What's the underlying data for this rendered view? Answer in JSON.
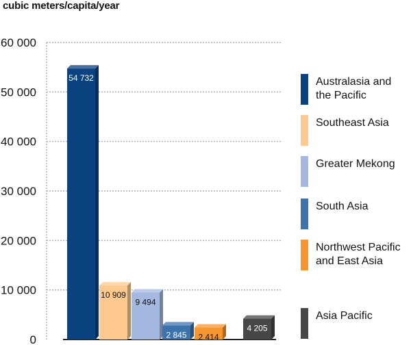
{
  "unit_label": "cubic meters/capita/year",
  "chart_data": {
    "type": "bar",
    "title": "",
    "ylabel": "cubic meters/capita/year",
    "ylim": [
      0,
      60000
    ],
    "y_ticks": [
      "0",
      "10 000",
      "20 000",
      "30 000",
      "40 000",
      "50 000",
      "60 000"
    ],
    "y_tick_values": [
      0,
      10000,
      20000,
      30000,
      40000,
      50000,
      60000
    ],
    "grid": true,
    "legend_position": "right",
    "categories": [
      "Australasia and the Pacific",
      "Southeast Asia",
      "Greater Mekong",
      "South Asia",
      "Northwest Pacific and East Asia",
      "Asia Pacific"
    ],
    "values": [
      54732,
      10909,
      9494,
      2845,
      2414,
      4205
    ],
    "value_labels": [
      "54 732",
      "10 909",
      "9 494",
      "2 845",
      "2 414",
      "4 205"
    ],
    "colors": [
      "#0b4280",
      "#fdc98e",
      "#a4b8e0",
      "#3d73ad",
      "#f7962f",
      "#474747"
    ],
    "label_colors": [
      "#ffffff",
      "#111111",
      "#111111",
      "#ffffff",
      "#111111",
      "#ffffff"
    ],
    "legend": [
      [
        "Australasia and",
        "the Pacific"
      ],
      [
        "Southeast Asia"
      ],
      [
        "Greater Mekong"
      ],
      [
        "South Asia"
      ],
      [
        "Northwest Pacific",
        "and East Asia"
      ],
      [
        "Asia Pacific"
      ]
    ]
  }
}
